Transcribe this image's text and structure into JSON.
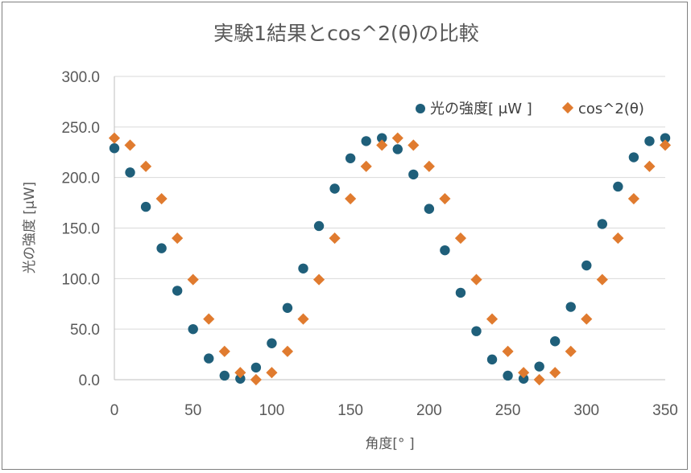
{
  "chart_data": {
    "type": "scatter",
    "title": "実験1結果とcos^2(θ)の比較",
    "xlabel": "角度[° ]",
    "ylabel": "光の強度 [μW]",
    "xlim": [
      0,
      350
    ],
    "ylim": [
      0,
      300
    ],
    "x_ticks": [
      "0",
      "50",
      "100",
      "150",
      "200",
      "250",
      "300",
      "350"
    ],
    "y_ticks": [
      "0.0",
      "50.0",
      "100.0",
      "150.0",
      "200.0",
      "250.0",
      "300.0"
    ],
    "grid": "horizontal",
    "legend_position": "top-right",
    "x": [
      0,
      10,
      20,
      30,
      40,
      50,
      60,
      70,
      80,
      90,
      100,
      110,
      120,
      130,
      140,
      150,
      160,
      170,
      180,
      190,
      200,
      210,
      220,
      230,
      240,
      250,
      260,
      270,
      280,
      290,
      300,
      310,
      320,
      330,
      340,
      350
    ],
    "series": [
      {
        "name": "光の強度[ μW ]",
        "marker": "circle",
        "color": "#1f5f7a",
        "values": [
          229,
          205,
          171,
          130,
          88,
          50,
          21,
          4,
          1,
          12,
          36,
          71,
          110,
          152,
          189,
          219,
          236,
          239,
          228,
          203,
          169,
          128,
          86,
          48,
          20,
          4,
          1,
          13,
          38,
          72,
          113,
          154,
          191,
          220,
          236,
          239
        ]
      },
      {
        "name": "cos^2(θ)",
        "marker": "diamond",
        "color": "#e07b2f",
        "values": [
          239,
          232,
          211,
          179,
          140,
          99,
          60,
          28,
          7,
          0,
          7,
          28,
          60,
          99,
          140,
          179,
          211,
          232,
          239,
          232,
          211,
          179,
          140,
          99,
          60,
          28,
          7,
          0,
          7,
          28,
          60,
          99,
          140,
          179,
          211,
          232
        ]
      }
    ]
  }
}
